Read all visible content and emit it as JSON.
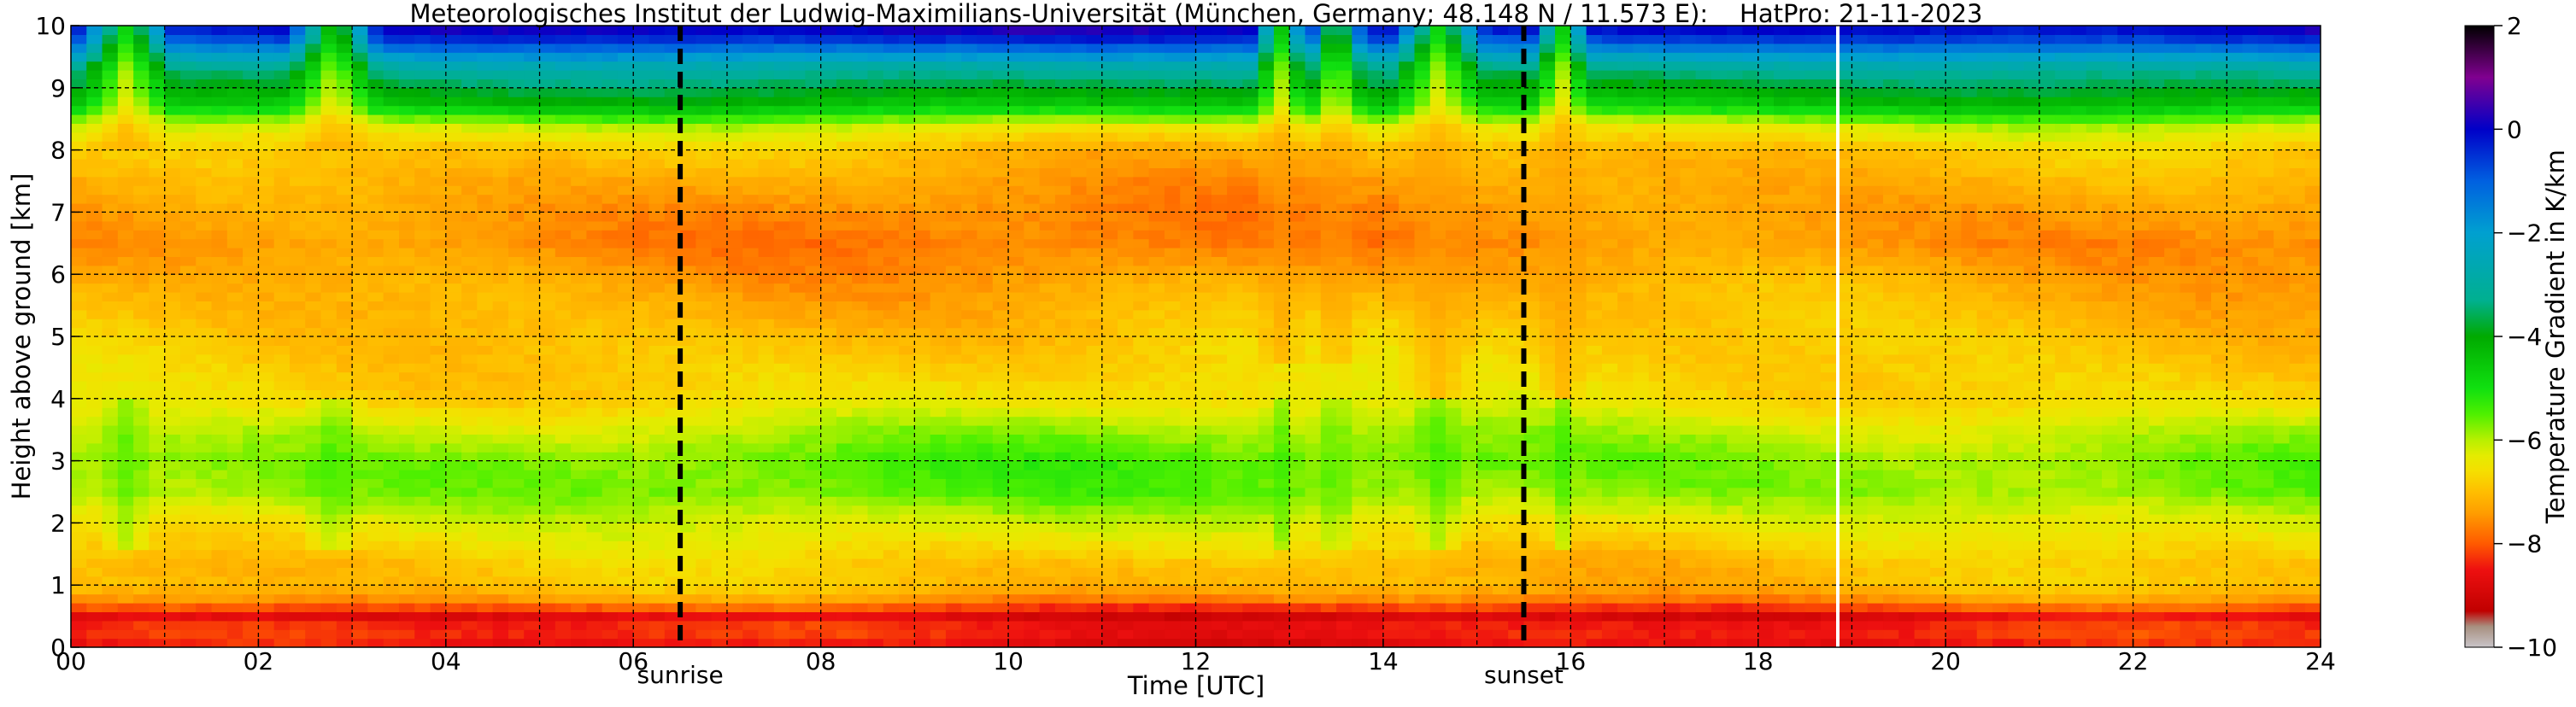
{
  "chart_data": {
    "type": "heatmap",
    "title": "Meteorologisches Institut der Ludwig-Maximilians-Universität (München, Germany; 48.148 N / 11.573 E):    HatPro: 21-11-2023",
    "xlabel": "Time [UTC]",
    "ylabel": "Height above ground [km]",
    "colorbar_label": "Temperature Gradient in K/km",
    "xlim": [
      0,
      24
    ],
    "ylim": [
      0,
      10
    ],
    "clim": [
      -10,
      2
    ],
    "x_ticks": [
      0,
      2,
      4,
      6,
      8,
      10,
      12,
      14,
      16,
      18,
      20,
      22,
      24
    ],
    "x_tick_labels": [
      "00",
      "02",
      "04",
      "06",
      "08",
      "10",
      "12",
      "14",
      "16",
      "18",
      "20",
      "22",
      "24"
    ],
    "y_ticks": [
      0,
      1,
      2,
      3,
      4,
      5,
      6,
      7,
      8,
      9,
      10
    ],
    "y_tick_labels": [
      "0",
      "1",
      "2",
      "3",
      "4",
      "5",
      "6",
      "7",
      "8",
      "9",
      "10"
    ],
    "colorbar_ticks": [
      2,
      0,
      -2,
      -4,
      -6,
      -8,
      -10
    ],
    "colorbar_tick_labels": [
      "2",
      "0",
      "−2",
      "−4",
      "−6",
      "−8",
      "−10"
    ],
    "grid": true,
    "grid_x_step_h": 1,
    "events": [
      {
        "name": "sunrise",
        "time": 6.5
      },
      {
        "name": "sunset",
        "time": 15.5
      }
    ],
    "data_gap_time": 18.85,
    "vertical_profile": [
      {
        "height": 0.05,
        "gradient": -8.6
      },
      {
        "height": 0.3,
        "gradient": -8.3
      },
      {
        "height": 0.5,
        "gradient": -8.8
      },
      {
        "height": 0.75,
        "gradient": -7.6
      },
      {
        "height": 1.0,
        "gradient": -7.0
      },
      {
        "height": 1.3,
        "gradient": -7.0
      },
      {
        "height": 1.6,
        "gradient": -6.7
      },
      {
        "height": 2.0,
        "gradient": -6.3
      },
      {
        "height": 2.5,
        "gradient": -5.7
      },
      {
        "height": 3.0,
        "gradient": -5.6
      },
      {
        "height": 3.5,
        "gradient": -6.0
      },
      {
        "height": 4.0,
        "gradient": -6.6
      },
      {
        "height": 5.0,
        "gradient": -6.9
      },
      {
        "height": 5.8,
        "gradient": -7.2
      },
      {
        "height": 6.5,
        "gradient": -7.6
      },
      {
        "height": 7.0,
        "gradient": -7.5
      },
      {
        "height": 7.5,
        "gradient": -7.3
      },
      {
        "height": 8.0,
        "gradient": -7.0
      },
      {
        "height": 8.4,
        "gradient": -6.2
      },
      {
        "height": 8.7,
        "gradient": -4.6
      },
      {
        "height": 9.0,
        "gradient": -3.8
      },
      {
        "height": 9.3,
        "gradient": -3.1
      },
      {
        "height": 9.55,
        "gradient": -1.8
      },
      {
        "height": 9.8,
        "gradient": -0.5
      },
      {
        "height": 10.0,
        "gradient": 0.2
      }
    ],
    "mixing_events": [
      {
        "time": 0.6,
        "width_h": 0.5,
        "bottom_km": 8.0
      },
      {
        "time": 2.8,
        "width_h": 0.5,
        "bottom_km": 8.0
      },
      {
        "time": 12.9,
        "width_h": 0.3,
        "bottom_km": 4.5
      },
      {
        "time": 13.5,
        "width_h": 0.3,
        "bottom_km": 4.5
      },
      {
        "time": 14.6,
        "width_h": 0.5,
        "bottom_km": 4.0
      },
      {
        "time": 15.9,
        "width_h": 0.3,
        "bottom_km": 4.0
      }
    ],
    "colormap": [
      {
        "value": -10.0,
        "color": "#c8c4c8"
      },
      {
        "value": -9.6,
        "color": "#a89080"
      },
      {
        "value": -9.3,
        "color": "#c00000"
      },
      {
        "value": -8.5,
        "color": "#ee1010"
      },
      {
        "value": -8.0,
        "color": "#ff5a00"
      },
      {
        "value": -7.4,
        "color": "#ff9e00"
      },
      {
        "value": -7.0,
        "color": "#ffbe00"
      },
      {
        "value": -6.6,
        "color": "#f5df00"
      },
      {
        "value": -6.3,
        "color": "#e4ec00"
      },
      {
        "value": -6.0,
        "color": "#b8f000"
      },
      {
        "value": -5.5,
        "color": "#4ef000"
      },
      {
        "value": -5.0,
        "color": "#10e010"
      },
      {
        "value": -4.0,
        "color": "#00aa00"
      },
      {
        "value": -3.3,
        "color": "#00b090"
      },
      {
        "value": -2.0,
        "color": "#00a0d0"
      },
      {
        "value": -1.0,
        "color": "#0060e0"
      },
      {
        "value": 0.0,
        "color": "#0000c8"
      },
      {
        "value": 1.0,
        "color": "#800090"
      },
      {
        "value": 2.0,
        "color": "#000000"
      }
    ]
  }
}
